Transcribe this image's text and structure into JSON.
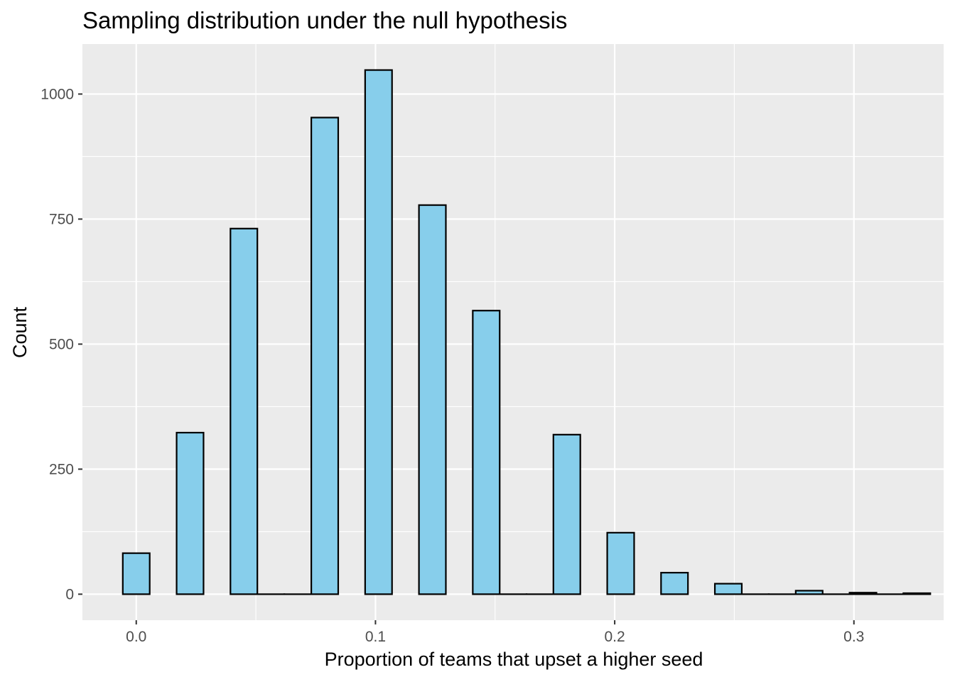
{
  "chart_data": {
    "type": "bar",
    "title": "Sampling distribution under the null hypothesis",
    "xlabel": "Proportion of teams that upset a higher seed",
    "ylabel": "Count",
    "xlim": [
      -0.0225,
      0.3375
    ],
    "ylim": [
      -52,
      1100
    ],
    "bin_width": 0.01125,
    "bins": [
      {
        "x": 0.0,
        "count": 82
      },
      {
        "x": 0.0225,
        "count": 323
      },
      {
        "x": 0.045,
        "count": 731
      },
      {
        "x": 0.05625,
        "count": 0
      },
      {
        "x": 0.0675,
        "count": 0
      },
      {
        "x": 0.0788,
        "count": 953
      },
      {
        "x": 0.1013,
        "count": 1048
      },
      {
        "x": 0.1238,
        "count": 778
      },
      {
        "x": 0.1463,
        "count": 567
      },
      {
        "x": 0.1575,
        "count": 0
      },
      {
        "x": 0.1688,
        "count": 0
      },
      {
        "x": 0.18,
        "count": 319
      },
      {
        "x": 0.2025,
        "count": 123
      },
      {
        "x": 0.225,
        "count": 43
      },
      {
        "x": 0.2475,
        "count": 21
      },
      {
        "x": 0.2588,
        "count": 0
      },
      {
        "x": 0.27,
        "count": 0
      },
      {
        "x": 0.2813,
        "count": 7
      },
      {
        "x": 0.2925,
        "count": 0
      },
      {
        "x": 0.3038,
        "count": 3
      },
      {
        "x": 0.315,
        "count": 0
      },
      {
        "x": 0.3263,
        "count": 2
      }
    ],
    "x_ticks": [
      {
        "value": 0.0,
        "label": "0.0"
      },
      {
        "value": 0.1,
        "label": "0.1"
      },
      {
        "value": 0.2,
        "label": "0.2"
      },
      {
        "value": 0.3,
        "label": "0.3"
      }
    ],
    "y_ticks": [
      {
        "value": 0,
        "label": "0"
      },
      {
        "value": 250,
        "label": "250"
      },
      {
        "value": 500,
        "label": "500"
      },
      {
        "value": 750,
        "label": "750"
      },
      {
        "value": 1000,
        "label": "1000"
      }
    ],
    "grid": true,
    "legend": "none",
    "colors": {
      "panel": "#ebebeb",
      "grid": "#ffffff",
      "bar_fill": "#87ceeb",
      "bar_stroke": "#000000",
      "tick_text": "#4d4d4d"
    }
  }
}
